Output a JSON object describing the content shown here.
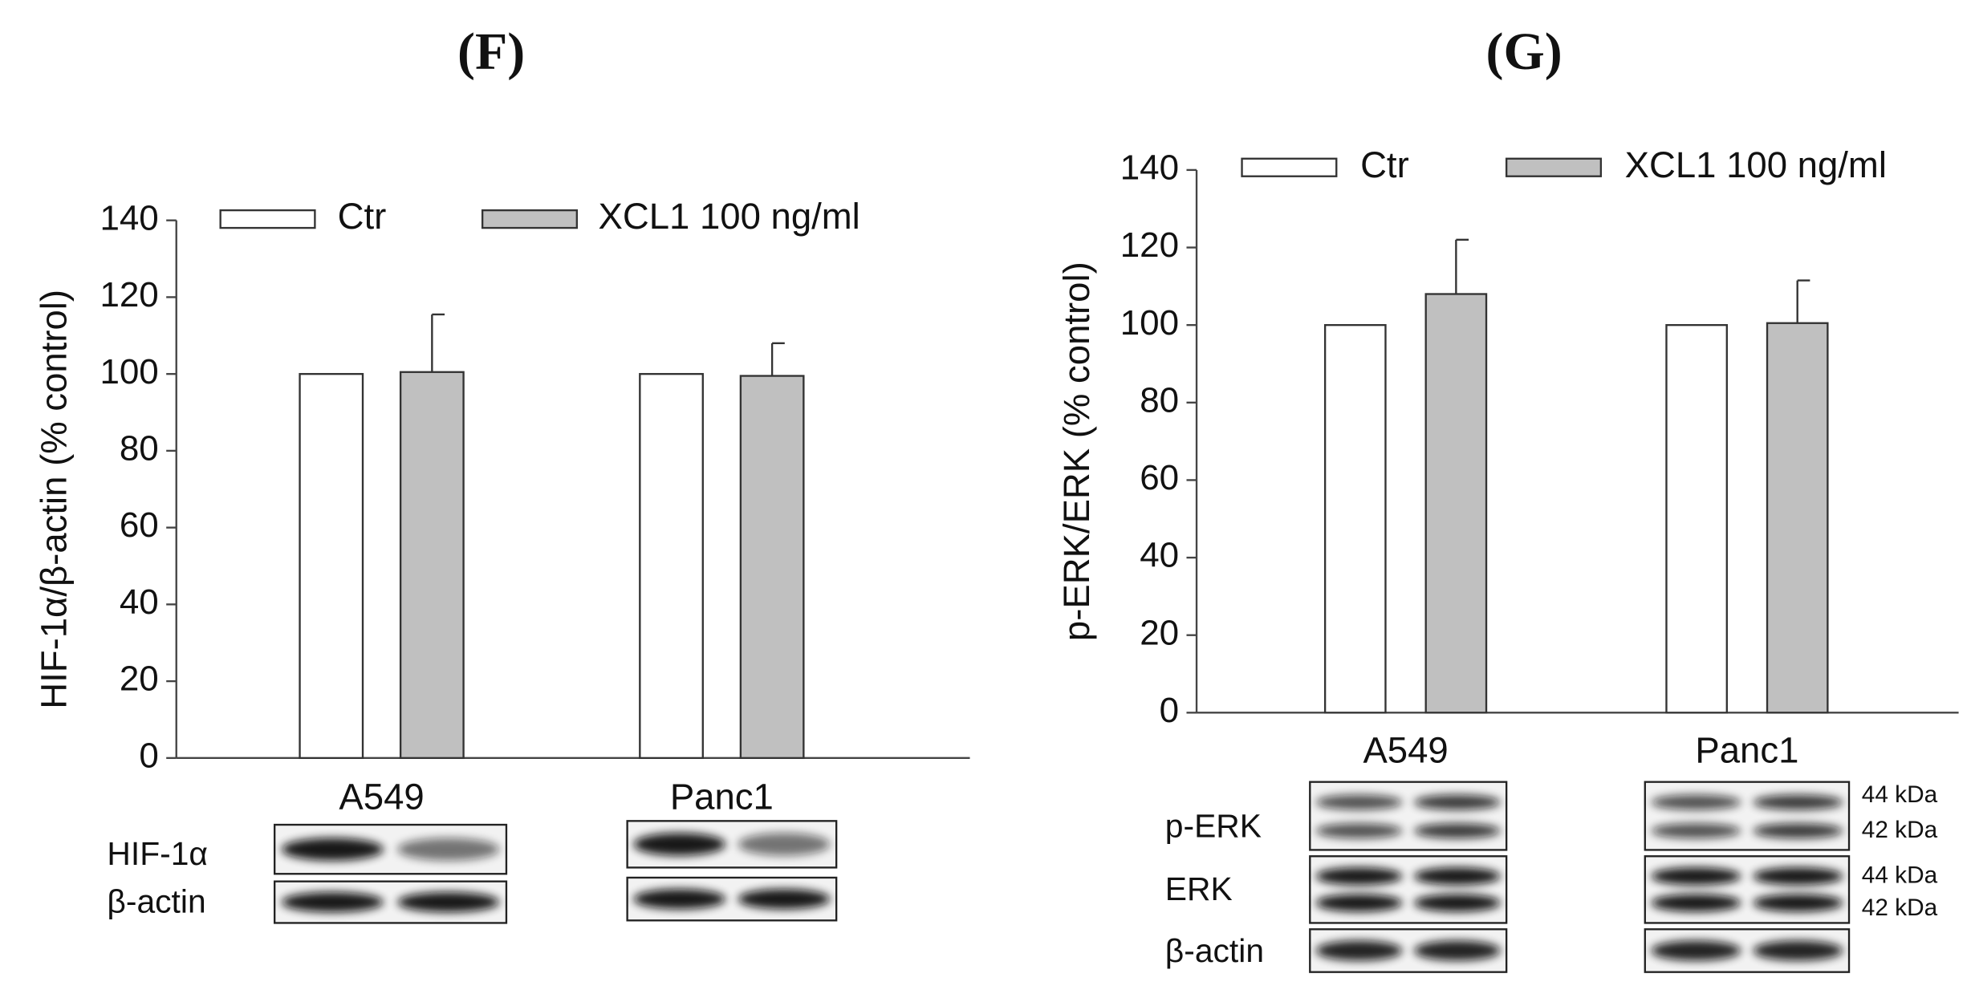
{
  "chart_data": [
    {
      "type": "bar",
      "title": "(F)",
      "y_label": "HIF-1α/β-actin (% control)",
      "categories": [
        "A549",
        "Panc1"
      ],
      "series": [
        {
          "name": "Ctr",
          "color": "#ffffff",
          "values": [
            100,
            100
          ]
        },
        {
          "name": "XCL1 100 ng/ml",
          "color": "#c0c0c0",
          "values": [
            100.5,
            99.5
          ],
          "errors": [
            15,
            8.5
          ]
        }
      ],
      "ylim": [
        0,
        140
      ],
      "yticks": [
        0,
        20,
        40,
        60,
        80,
        100,
        120,
        140
      ],
      "legend": "top",
      "blot_labels": [
        "HIF-1α",
        "β-actin"
      ]
    },
    {
      "type": "bar",
      "title": "(G)",
      "y_label": "p-ERK/ERK (% control)",
      "categories": [
        "A549",
        "Panc1"
      ],
      "series": [
        {
          "name": "Ctr",
          "color": "#ffffff",
          "values": [
            100,
            100
          ]
        },
        {
          "name": "XCL1 100 ng/ml",
          "color": "#c0c0c0",
          "values": [
            108,
            100.5
          ],
          "errors": [
            14,
            11
          ]
        }
      ],
      "ylim": [
        0,
        140
      ],
      "yticks": [
        0,
        20,
        40,
        60,
        80,
        100,
        120,
        140
      ],
      "legend": "top",
      "blot_labels": [
        "p-ERK",
        "ERK",
        "β-actin"
      ],
      "size_markers": [
        "44 kDa",
        "42 kDa",
        "44 kDa",
        "42 kDa"
      ]
    }
  ]
}
